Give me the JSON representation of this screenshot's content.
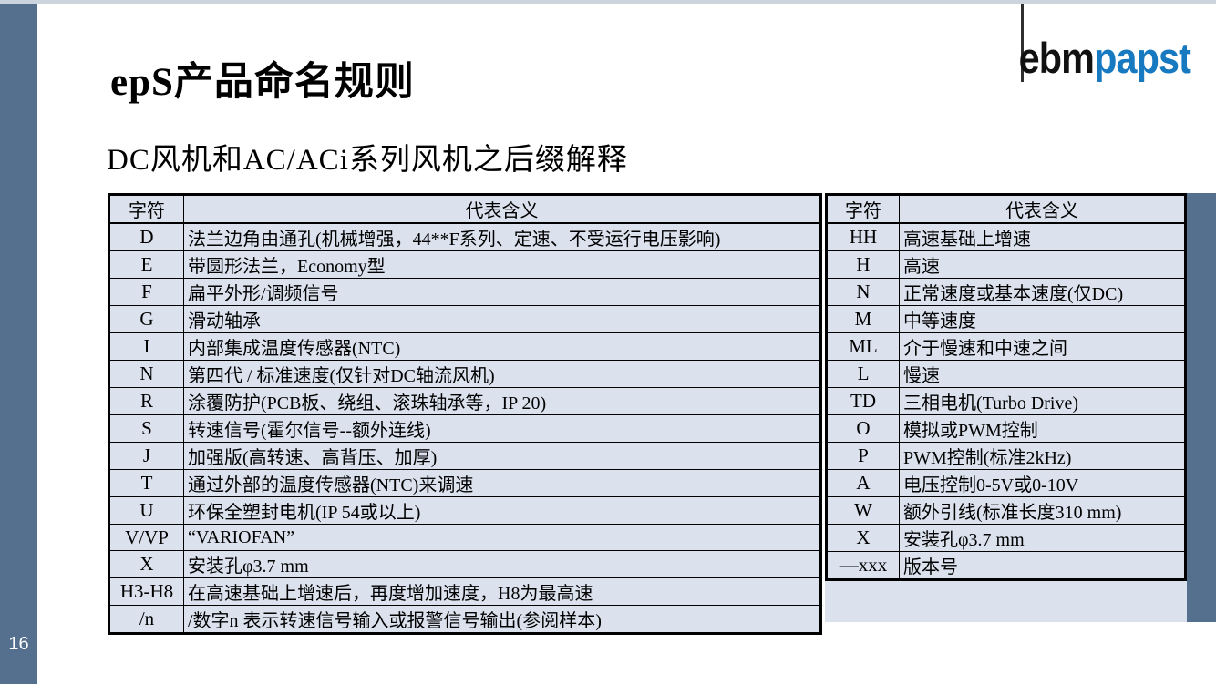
{
  "page": {
    "title": "epS产品命名规则",
    "subtitle": "DC风机和AC/ACi系列风机之后缀解释",
    "page_number": "16"
  },
  "logo": {
    "ebm": "ebm",
    "papst": "papst",
    "papst_color": "#1779c0"
  },
  "colors": {
    "sidebar": "#54708e",
    "top_strip": "#ccd4dd",
    "cell_background": "#dbe2ee",
    "table_border": "#000000"
  },
  "left_table": {
    "headers": [
      "字符",
      "代表含义"
    ],
    "rows": [
      [
        "D",
        "法兰边角由通孔(机械增强，44**F系列、定速、不受运行电压影响)"
      ],
      [
        "E",
        "带圆形法兰，Economy型"
      ],
      [
        "F",
        "扁平外形/调频信号"
      ],
      [
        "G",
        "滑动轴承"
      ],
      [
        "I",
        "内部集成温度传感器(NTC)"
      ],
      [
        "N",
        "第四代 / 标准速度(仅针对DC轴流风机)"
      ],
      [
        "R",
        "涂覆防护(PCB板、绕组、滚珠轴承等，IP 20)"
      ],
      [
        "S",
        "转速信号(霍尔信号--额外连线)"
      ],
      [
        "J",
        "加强版(高转速、高背压、加厚)"
      ],
      [
        "T",
        "通过外部的温度传感器(NTC)来调速"
      ],
      [
        "U",
        "环保全塑封电机(IP 54或以上)"
      ],
      [
        "V/VP",
        "“VARIOFAN”"
      ],
      [
        "X",
        "安装孔φ3.7 mm"
      ],
      [
        "H3-H8",
        "在高速基础上增速后，再度增加速度，H8为最高速"
      ],
      [
        "/n",
        "/数字n 表示转速信号输入或报警信号输出(参阅样本)"
      ]
    ]
  },
  "right_table": {
    "headers": [
      "字符",
      "代表含义"
    ],
    "rows": [
      [
        "HH",
        "高速基础上增速"
      ],
      [
        "H",
        "高速"
      ],
      [
        "N",
        "正常速度或基本速度(仅DC)"
      ],
      [
        "M",
        "中等速度"
      ],
      [
        "ML",
        "介于慢速和中速之间"
      ],
      [
        "L",
        "慢速"
      ],
      [
        "TD",
        "三相电机(Turbo Drive)"
      ],
      [
        "O",
        "模拟或PWM控制"
      ],
      [
        "P",
        "PWM控制(标准2kHz)"
      ],
      [
        "A",
        "电压控制0-5V或0-10V"
      ],
      [
        "W",
        "额外引线(标准长度310 mm)"
      ],
      [
        "X",
        "安装孔φ3.7 mm"
      ],
      [
        "—xxx",
        "版本号"
      ]
    ]
  }
}
